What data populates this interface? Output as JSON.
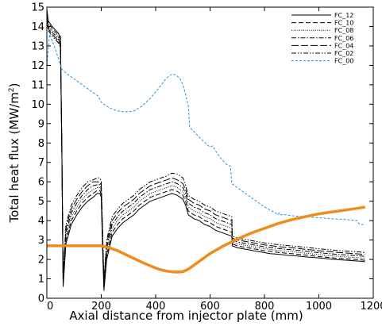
{
  "chart_data": {
    "type": "line",
    "title": "",
    "xlabel": "Axial distance from injector plate (mm)",
    "ylabel_main": "Total heat flux (MW/m",
    "ylabel_sup": "2",
    "ylabel_close": ")",
    "xlim": [
      0,
      1200
    ],
    "ylim": [
      0,
      15
    ],
    "xticks": [
      0,
      200,
      400,
      600,
      800,
      1000,
      1200
    ],
    "yticks": [
      0,
      1,
      2,
      3,
      4,
      5,
      6,
      7,
      8,
      9,
      10,
      11,
      12,
      13,
      14,
      15
    ],
    "legend_position": "top-right",
    "series": [
      {
        "name": "FC_12",
        "color": "#000000",
        "dash": "solid",
        "x": [
          0,
          5,
          20,
          40,
          48,
          50,
          55,
          60,
          70,
          90,
          110,
          130,
          150,
          170,
          185,
          195,
          200,
          205,
          210,
          220,
          240,
          260,
          280,
          300,
          320,
          340,
          360,
          380,
          400,
          420,
          440,
          460,
          480,
          500,
          510,
          520,
          540,
          560,
          580,
          600,
          620,
          640,
          660,
          680,
          682,
          700,
          720,
          740,
          760,
          780,
          800,
          820,
          840,
          860,
          880,
          900,
          920,
          940,
          960,
          980,
          1000,
          1020,
          1040,
          1060,
          1080,
          1100,
          1120,
          1140,
          1160,
          1170
        ],
        "y": [
          14.9,
          14.3,
          14.0,
          13.7,
          13.5,
          13.5,
          8,
          0.6,
          2.8,
          3.8,
          4.3,
          4.7,
          5.0,
          5.2,
          5.4,
          5.4,
          5.2,
          2.5,
          0.4,
          2.0,
          3.2,
          3.6,
          3.9,
          4.1,
          4.3,
          4.6,
          4.8,
          5.0,
          5.1,
          5.2,
          5.3,
          5.4,
          5.3,
          5.1,
          4.8,
          4.3,
          4.1,
          4.0,
          3.8,
          3.7,
          3.5,
          3.4,
          3.3,
          3.2,
          2.7,
          2.6,
          2.55,
          2.5,
          2.45,
          2.4,
          2.35,
          2.3,
          2.28,
          2.25,
          2.22,
          2.2,
          2.18,
          2.15,
          2.12,
          2.1,
          2.08,
          2.05,
          2.02,
          2.0,
          1.98,
          1.96,
          1.94,
          1.92,
          1.9,
          1.88
        ]
      },
      {
        "name": "FC_10",
        "color": "#000000",
        "dash": "long",
        "x": [
          0,
          5,
          20,
          40,
          48,
          50,
          55,
          60,
          70,
          90,
          110,
          130,
          150,
          170,
          185,
          195,
          200,
          205,
          210,
          220,
          240,
          260,
          280,
          300,
          320,
          340,
          360,
          380,
          400,
          420,
          440,
          460,
          480,
          500,
          510,
          520,
          540,
          560,
          580,
          600,
          620,
          640,
          660,
          680,
          682,
          700,
          720,
          740,
          760,
          780,
          800,
          820,
          840,
          860,
          880,
          900,
          920,
          940,
          960,
          980,
          1000,
          1020,
          1040,
          1060,
          1080,
          1100,
          1120,
          1140,
          1160,
          1170
        ],
        "y": [
          14.8,
          14.2,
          13.9,
          13.6,
          13.4,
          13.4,
          8,
          0.7,
          3.0,
          4.0,
          4.5,
          4.9,
          5.2,
          5.4,
          5.55,
          5.55,
          5.35,
          2.7,
          0.5,
          2.2,
          3.4,
          3.8,
          4.1,
          4.3,
          4.5,
          4.8,
          5.0,
          5.2,
          5.3,
          5.4,
          5.5,
          5.6,
          5.5,
          5.3,
          5.0,
          4.5,
          4.3,
          4.2,
          4.0,
          3.9,
          3.7,
          3.6,
          3.5,
          3.4,
          2.8,
          2.7,
          2.65,
          2.6,
          2.55,
          2.5,
          2.45,
          2.42,
          2.38,
          2.35,
          2.32,
          2.3,
          2.27,
          2.24,
          2.21,
          2.18,
          2.15,
          2.12,
          2.1,
          2.07,
          2.05,
          2.03,
          2.01,
          1.99,
          1.97,
          1.95
        ]
      },
      {
        "name": "FC_08",
        "color": "#000000",
        "dash": "dot",
        "x": [
          0,
          5,
          20,
          40,
          48,
          50,
          55,
          60,
          70,
          90,
          110,
          130,
          150,
          170,
          185,
          195,
          200,
          205,
          210,
          220,
          240,
          260,
          280,
          300,
          320,
          340,
          360,
          380,
          400,
          420,
          440,
          460,
          480,
          500,
          510,
          520,
          540,
          560,
          580,
          600,
          620,
          640,
          660,
          680,
          682,
          700,
          720,
          740,
          760,
          780,
          800,
          820,
          840,
          860,
          880,
          900,
          920,
          940,
          960,
          980,
          1000,
          1020,
          1040,
          1060,
          1080,
          1100,
          1120,
          1140,
          1160,
          1170
        ],
        "y": [
          14.7,
          14.1,
          13.8,
          13.5,
          13.3,
          13.3,
          8,
          0.8,
          3.2,
          4.2,
          4.7,
          5.1,
          5.4,
          5.6,
          5.7,
          5.7,
          5.5,
          2.9,
          0.6,
          2.4,
          3.6,
          4.0,
          4.3,
          4.5,
          4.7,
          5.0,
          5.2,
          5.4,
          5.5,
          5.6,
          5.7,
          5.8,
          5.7,
          5.5,
          5.2,
          4.7,
          4.5,
          4.4,
          4.2,
          4.1,
          3.9,
          3.8,
          3.7,
          3.6,
          2.9,
          2.8,
          2.75,
          2.7,
          2.65,
          2.6,
          2.55,
          2.52,
          2.48,
          2.45,
          2.42,
          2.4,
          2.37,
          2.34,
          2.31,
          2.28,
          2.25,
          2.22,
          2.2,
          2.17,
          2.15,
          2.13,
          2.11,
          2.09,
          2.07,
          2.05
        ]
      },
      {
        "name": "FC_06",
        "color": "#000000",
        "dash": "dashdot",
        "x": [
          0,
          5,
          20,
          40,
          48,
          50,
          55,
          60,
          70,
          90,
          110,
          130,
          150,
          170,
          185,
          195,
          200,
          205,
          210,
          220,
          240,
          260,
          280,
          300,
          320,
          340,
          360,
          380,
          400,
          420,
          440,
          460,
          480,
          500,
          510,
          520,
          540,
          560,
          580,
          600,
          620,
          640,
          660,
          680,
          682,
          700,
          720,
          740,
          760,
          780,
          800,
          820,
          840,
          860,
          880,
          900,
          920,
          940,
          960,
          980,
          1000,
          1020,
          1040,
          1060,
          1080,
          1100,
          1120,
          1140,
          1160,
          1170
        ],
        "y": [
          14.6,
          14.0,
          13.7,
          13.4,
          13.2,
          13.2,
          8,
          0.9,
          3.4,
          4.4,
          4.9,
          5.3,
          5.6,
          5.8,
          5.85,
          5.85,
          5.65,
          3.1,
          0.7,
          2.6,
          3.8,
          4.2,
          4.5,
          4.7,
          4.9,
          5.2,
          5.4,
          5.6,
          5.7,
          5.8,
          5.9,
          6.0,
          5.9,
          5.7,
          5.4,
          4.9,
          4.7,
          4.6,
          4.4,
          4.3,
          4.1,
          4.0,
          3.9,
          3.8,
          3.0,
          2.9,
          2.85,
          2.8,
          2.75,
          2.7,
          2.65,
          2.62,
          2.58,
          2.55,
          2.52,
          2.5,
          2.47,
          2.44,
          2.41,
          2.38,
          2.35,
          2.32,
          2.3,
          2.27,
          2.25,
          2.23,
          2.21,
          2.19,
          2.17,
          2.15
        ]
      },
      {
        "name": "FC_04",
        "color": "#000000",
        "dash": "longdash",
        "x": [
          0,
          5,
          20,
          40,
          48,
          50,
          55,
          60,
          70,
          90,
          110,
          130,
          150,
          170,
          185,
          195,
          200,
          205,
          210,
          220,
          240,
          260,
          280,
          300,
          320,
          340,
          360,
          380,
          400,
          420,
          440,
          460,
          480,
          500,
          510,
          520,
          540,
          560,
          580,
          600,
          620,
          640,
          660,
          680,
          682,
          700,
          720,
          740,
          760,
          780,
          800,
          820,
          840,
          860,
          880,
          900,
          920,
          940,
          960,
          980,
          1000,
          1020,
          1040,
          1060,
          1080,
          1100,
          1120,
          1140,
          1160,
          1170
        ],
        "y": [
          14.5,
          13.9,
          13.6,
          13.3,
          13.1,
          13.1,
          8,
          1.0,
          3.6,
          4.6,
          5.1,
          5.5,
          5.8,
          6.0,
          6.0,
          6.0,
          5.8,
          3.3,
          0.8,
          2.8,
          4.0,
          4.4,
          4.7,
          4.9,
          5.1,
          5.4,
          5.6,
          5.8,
          5.9,
          6.0,
          6.1,
          6.2,
          6.1,
          5.9,
          5.6,
          5.1,
          4.9,
          4.8,
          4.6,
          4.5,
          4.3,
          4.2,
          4.1,
          4.0,
          3.1,
          3.0,
          2.95,
          2.9,
          2.85,
          2.8,
          2.75,
          2.72,
          2.68,
          2.65,
          2.62,
          2.6,
          2.57,
          2.54,
          2.51,
          2.48,
          2.45,
          2.42,
          2.4,
          2.37,
          2.35,
          2.33,
          2.31,
          2.29,
          2.27,
          2.25
        ]
      },
      {
        "name": "FC_02",
        "color": "#000000",
        "dash": "dashdotdot",
        "x": [
          0,
          5,
          20,
          40,
          48,
          50,
          55,
          60,
          70,
          90,
          110,
          130,
          150,
          170,
          185,
          195,
          200,
          205,
          210,
          220,
          240,
          260,
          280,
          300,
          320,
          340,
          360,
          380,
          400,
          420,
          440,
          460,
          480,
          500,
          510,
          520,
          540,
          560,
          580,
          600,
          620,
          640,
          660,
          680,
          682,
          700,
          720,
          740,
          760,
          780,
          800,
          820,
          840,
          860,
          880,
          900,
          920,
          940,
          960,
          980,
          1000,
          1020,
          1040,
          1060,
          1080,
          1100,
          1120,
          1140,
          1160,
          1170
        ],
        "y": [
          14.4,
          13.8,
          13.5,
          13.2,
          13.0,
          13.0,
          8,
          1.1,
          3.8,
          4.8,
          5.3,
          5.7,
          6.0,
          6.1,
          6.2,
          6.2,
          6.0,
          3.5,
          0.9,
          3.0,
          4.2,
          4.6,
          4.9,
          5.1,
          5.3,
          5.6,
          5.8,
          6.0,
          6.1,
          6.2,
          6.3,
          6.45,
          6.4,
          6.2,
          5.8,
          5.3,
          5.1,
          5.0,
          4.8,
          4.7,
          4.5,
          4.4,
          4.3,
          4.2,
          3.2,
          3.1,
          3.05,
          3.0,
          2.95,
          2.9,
          2.85,
          2.82,
          2.78,
          2.75,
          2.72,
          2.7,
          2.67,
          2.64,
          2.61,
          2.58,
          2.55,
          2.52,
          2.5,
          2.47,
          2.45,
          2.43,
          2.41,
          2.39,
          2.37,
          2.35
        ]
      },
      {
        "name": "FC_00",
        "color": "#2f8fd8",
        "dash": "shortdash",
        "x": [
          0,
          10,
          30,
          55,
          80,
          120,
          160,
          190,
          200,
          230,
          260,
          290,
          320,
          350,
          380,
          410,
          440,
          460,
          475,
          490,
          500,
          510,
          520,
          525,
          540,
          560,
          590,
          600,
          610,
          620,
          640,
          660,
          675,
          680,
          700,
          720,
          740,
          760,
          780,
          800,
          820,
          840,
          850,
          855,
          860,
          880,
          900,
          950,
          1000,
          1050,
          1100,
          1140,
          1150,
          1160,
          1170
        ],
        "y": [
          12.0,
          13.6,
          12.9,
          11.8,
          11.5,
          11.1,
          10.7,
          10.4,
          10.1,
          9.8,
          9.65,
          9.6,
          9.65,
          9.9,
          10.3,
          10.8,
          11.35,
          11.55,
          11.5,
          11.3,
          11.0,
          10.5,
          9.9,
          8.8,
          8.6,
          8.3,
          7.9,
          7.8,
          7.85,
          7.6,
          7.2,
          6.9,
          6.8,
          5.9,
          5.7,
          5.5,
          5.3,
          5.1,
          4.9,
          4.7,
          4.55,
          4.4,
          4.3,
          4.4,
          4.3,
          4.3,
          4.25,
          4.2,
          4.15,
          4.1,
          4.05,
          4.0,
          3.8,
          3.8,
          3.8
        ]
      },
      {
        "name": "",
        "color": "#f08c1e",
        "dash": "thick",
        "x": [
          0,
          50,
          100,
          150,
          200,
          230,
          260,
          290,
          320,
          350,
          380,
          410,
          440,
          460,
          480,
          500,
          520,
          540,
          570,
          600,
          650,
          700,
          750,
          800,
          850,
          900,
          950,
          1000,
          1050,
          1100,
          1150,
          1170
        ],
        "y": [
          2.7,
          2.7,
          2.7,
          2.7,
          2.7,
          2.6,
          2.45,
          2.25,
          2.05,
          1.85,
          1.67,
          1.5,
          1.4,
          1.36,
          1.35,
          1.37,
          1.5,
          1.7,
          2.0,
          2.3,
          2.7,
          3.05,
          3.35,
          3.6,
          3.85,
          4.05,
          4.2,
          4.35,
          4.45,
          4.55,
          4.65,
          4.7
        ]
      }
    ]
  }
}
